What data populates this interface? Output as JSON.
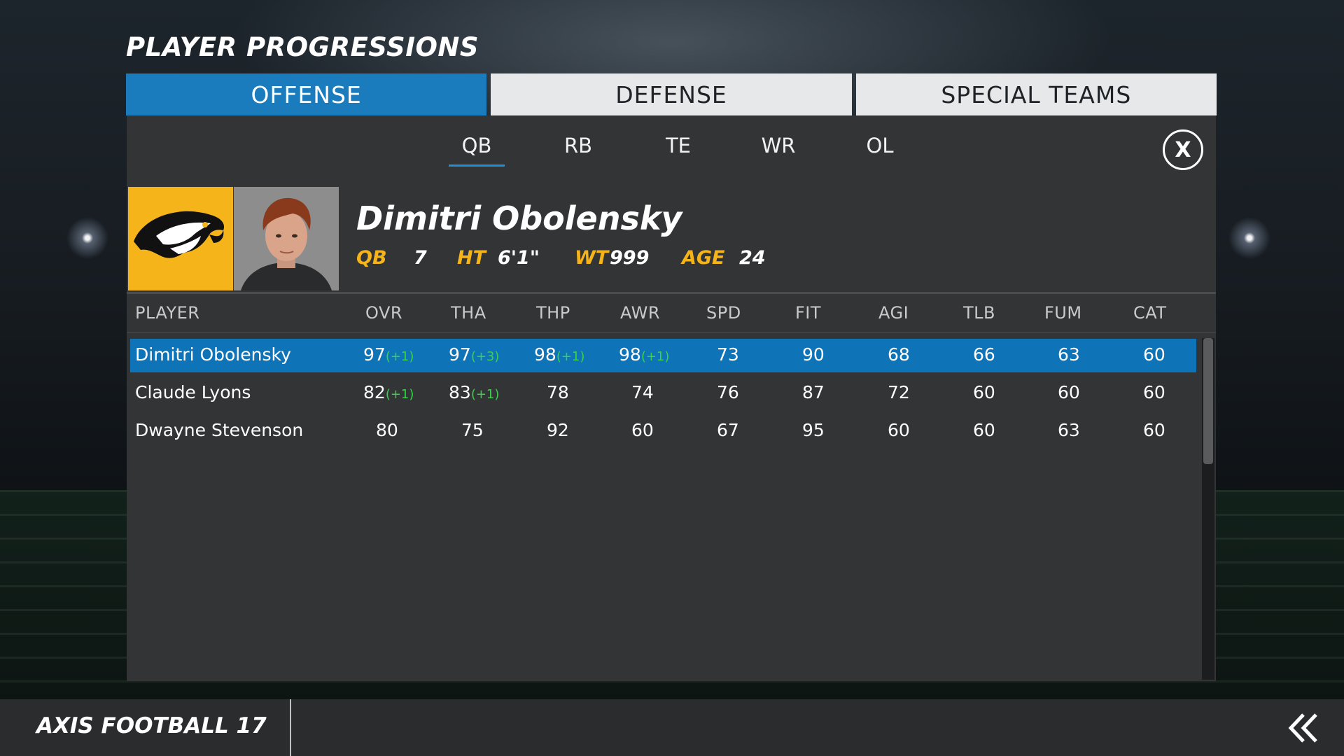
{
  "page": {
    "title": "PLAYER PROGRESSIONS"
  },
  "tabs": [
    {
      "label": "OFFENSE",
      "active": true
    },
    {
      "label": "DEFENSE",
      "active": false
    },
    {
      "label": "SPECIAL TEAMS",
      "active": false
    }
  ],
  "positions": [
    {
      "label": "QB",
      "active": true
    },
    {
      "label": "RB",
      "active": false
    },
    {
      "label": "TE",
      "active": false
    },
    {
      "label": "WR",
      "active": false
    },
    {
      "label": "OL",
      "active": false
    }
  ],
  "close_label": "X",
  "player": {
    "name": "Dimitri Obolensky",
    "position": "QB",
    "number": "7",
    "height_label": "HT",
    "height": "6'1\"",
    "weight_label": "WT",
    "weight": "999",
    "age_label": "AGE",
    "age": "24"
  },
  "table": {
    "columns": [
      "PLAYER",
      "OVR",
      "THA",
      "THP",
      "AWR",
      "SPD",
      "FIT",
      "AGI",
      "TLB",
      "FUM",
      "CAT"
    ],
    "rows": [
      {
        "selected": true,
        "name": "Dimitri Obolensky",
        "cells": [
          {
            "v": "97",
            "d": "(+1)"
          },
          {
            "v": "97",
            "d": "(+3)"
          },
          {
            "v": "98",
            "d": "(+1)"
          },
          {
            "v": "98",
            "d": "(+1)"
          },
          {
            "v": "73",
            "d": ""
          },
          {
            "v": "90",
            "d": ""
          },
          {
            "v": "68",
            "d": ""
          },
          {
            "v": "66",
            "d": ""
          },
          {
            "v": "63",
            "d": ""
          },
          {
            "v": "60",
            "d": ""
          }
        ]
      },
      {
        "selected": false,
        "name": "Claude Lyons",
        "cells": [
          {
            "v": "82",
            "d": "(+1)"
          },
          {
            "v": "83",
            "d": "(+1)"
          },
          {
            "v": "78",
            "d": ""
          },
          {
            "v": "74",
            "d": ""
          },
          {
            "v": "76",
            "d": ""
          },
          {
            "v": "87",
            "d": ""
          },
          {
            "v": "72",
            "d": ""
          },
          {
            "v": "60",
            "d": ""
          },
          {
            "v": "60",
            "d": ""
          },
          {
            "v": "60",
            "d": ""
          }
        ]
      },
      {
        "selected": false,
        "name": "Dwayne Stevenson",
        "cells": [
          {
            "v": "80",
            "d": ""
          },
          {
            "v": "75",
            "d": ""
          },
          {
            "v": "92",
            "d": ""
          },
          {
            "v": "60",
            "d": ""
          },
          {
            "v": "67",
            "d": ""
          },
          {
            "v": "95",
            "d": ""
          },
          {
            "v": "60",
            "d": ""
          },
          {
            "v": "60",
            "d": ""
          },
          {
            "v": "63",
            "d": ""
          },
          {
            "v": "60",
            "d": ""
          }
        ]
      }
    ]
  },
  "icons": {
    "team_logo": "eagle-logo-icon",
    "back": "double-chevron-left-icon",
    "close": "close-icon"
  },
  "colors": {
    "accent": "#1a7bbd",
    "highlight": "#f4b41a",
    "delta": "#39d24a"
  },
  "footer": {
    "title": "AXIS FOOTBALL 17"
  }
}
